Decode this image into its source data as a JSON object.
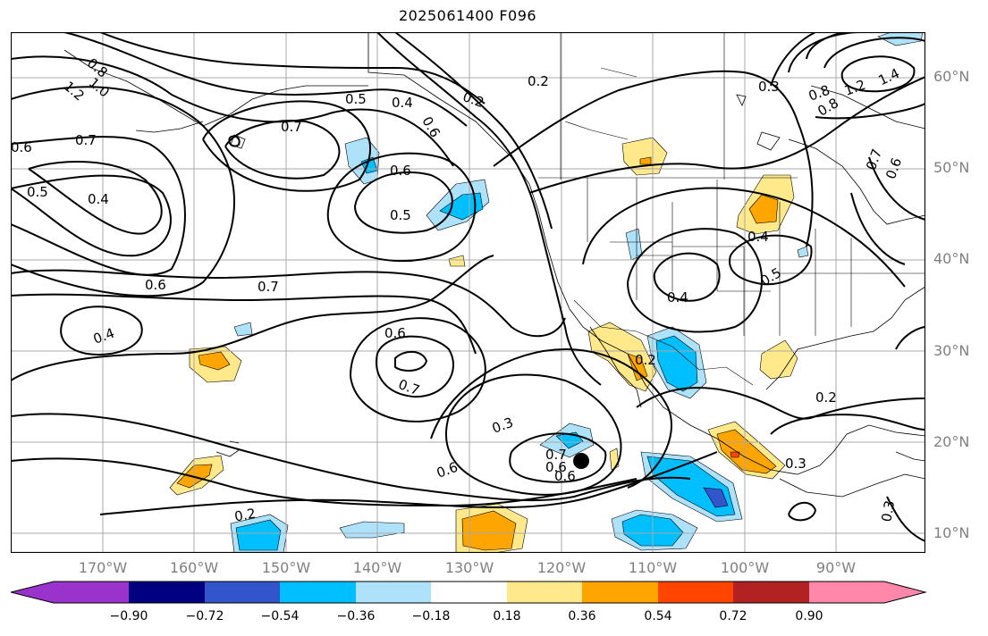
{
  "title": "2025061400 F096",
  "colors": {
    "neg_090": "#9933cc",
    "neg_072": "#000080",
    "neg_054": "#3355cc",
    "neg_036": "#00bfff",
    "neg_018": "#aee2fa",
    "neutral": "#ffffff",
    "pos_018": "#ffe98a",
    "pos_036": "#ffa500",
    "pos_054": "#ff4500",
    "pos_072": "#b22222",
    "pos_090": "#ff88aa"
  },
  "lat_labels": [
    "60°N",
    "50°N",
    "40°N",
    "30°N",
    "20°N",
    "10°N"
  ],
  "lon_labels": [
    "170°W",
    "160°W",
    "150°W",
    "140°W",
    "130°W",
    "120°W",
    "110°W",
    "100°W",
    "90°W"
  ],
  "colorbar_ticks": [
    "−0.90",
    "−0.72",
    "−0.54",
    "−0.36",
    "−0.18",
    "0.18",
    "0.36",
    "0.54",
    "0.72",
    "0.90"
  ],
  "contour_labels": [
    "0.8",
    "1.0",
    "1.2",
    "0.6",
    "0.7",
    "0.5",
    "0.4",
    "0.7",
    "0.5",
    "0.4",
    "0.2",
    "0.2",
    "0.3",
    "0.8",
    "1.2",
    "1.4",
    "0.8",
    "0.6",
    "0.6",
    "0.7",
    "0.6",
    "0.5",
    "0.4",
    "0.5",
    "0.4",
    "0.6",
    "0.7",
    "0.4",
    "0.6",
    "0.7",
    "0.2",
    "0.3",
    "0.6",
    "0.7",
    "0.6",
    "0.6",
    "0.2",
    "0.3",
    "0.2",
    "0.3"
  ]
}
